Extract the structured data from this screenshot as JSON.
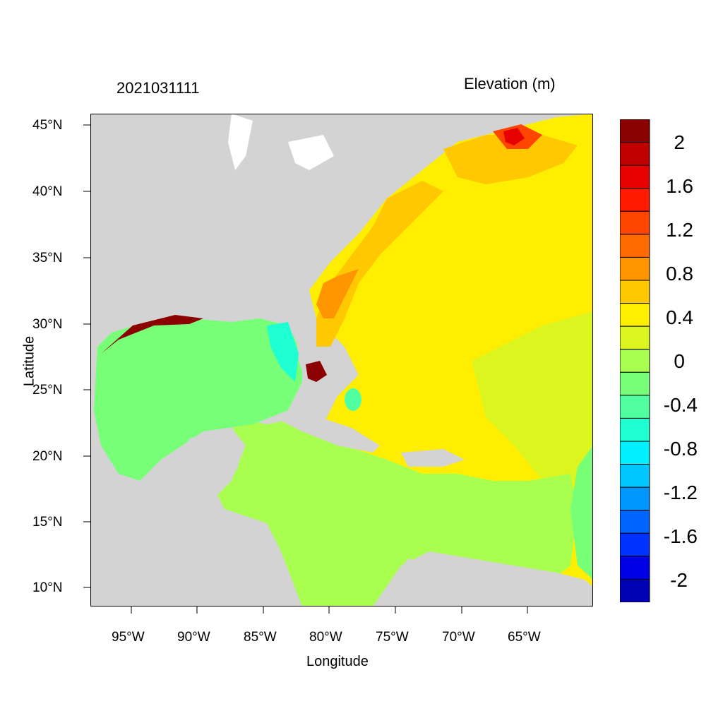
{
  "timestamp": "2021031111",
  "title": "Elevation (m)",
  "map": {
    "xlabel": "Longitude",
    "ylabel": "Latitude",
    "xticks": [
      "95°W",
      "90°W",
      "85°W",
      "80°W",
      "75°W",
      "70°W",
      "65°W"
    ],
    "yticks": [
      "45°N",
      "40°N",
      "35°N",
      "30°N",
      "25°N",
      "20°N",
      "15°N",
      "10°N"
    ],
    "land_color": "#d3d3d3"
  },
  "colorbar": {
    "labels": [
      "2",
      "1.6",
      "1.2",
      "0.8",
      "0.4",
      "0",
      "-0.4",
      "-0.8",
      "-1.2",
      "-1.6",
      "-2"
    ],
    "colors": [
      "#8b0000",
      "#c00000",
      "#e60000",
      "#ff1a00",
      "#ff4500",
      "#ff6a00",
      "#ff9500",
      "#ffc800",
      "#ffee00",
      "#dcf51e",
      "#a8ff50",
      "#78ff78",
      "#50ffa0",
      "#1effd2",
      "#00f0ff",
      "#00c8ff",
      "#0096ff",
      "#0064ff",
      "#0032ff",
      "#0000e6",
      "#0000b4"
    ]
  }
}
